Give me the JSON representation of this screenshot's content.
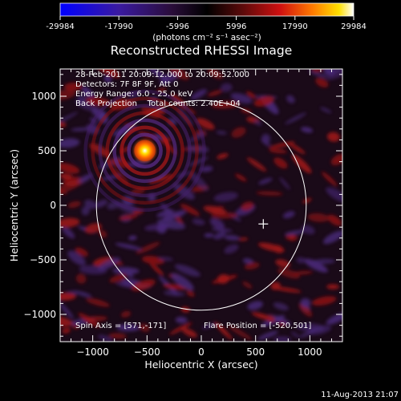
{
  "colorbar": {
    "ticks": [
      "-29984",
      "-17990",
      "-5996",
      "5996",
      "17990",
      "29984"
    ],
    "tick_values": [
      -29984,
      -17990,
      -5996,
      5996,
      17990,
      29984
    ],
    "units": "(photons cm⁻² s⁻¹ asec⁻²)",
    "colors": [
      "#0000ff",
      "#3a1aa0",
      "#2a0d3a",
      "#000000",
      "#5a0a0a",
      "#d01010",
      "#ff7a00",
      "#ffe000",
      "#ffffff"
    ]
  },
  "plot": {
    "title": "Reconstructed RHESSI Image",
    "xlabel": "Heliocentric X (arcsec)",
    "ylabel": "Heliocentric Y (arcsec)",
    "xlim": [
      -1300,
      1300
    ],
    "ylim": [
      -1250,
      1250
    ],
    "xticks": [
      -1000,
      -500,
      0,
      500,
      1000
    ],
    "yticks": [
      -1000,
      -500,
      0,
      500,
      1000
    ],
    "xtick_labels": [
      "−1000",
      "−500",
      "0",
      "500",
      "1000"
    ],
    "ytick_labels": [
      "1000",
      "500",
      "0",
      "−500",
      "−1000"
    ],
    "annotations": [
      "28-Feb-2011 20:09:12.000 to 20:09:52.000",
      "Detectors: 7F 8F 9F, Att 0",
      "Energy Range: 6.0 - 25.0 keV",
      "Back Projection    Total counts: 2.40E+04"
    ],
    "spin_axis": "Spin Axis = [571,-171]",
    "flare_position": "Flare Position = [-520,501]",
    "solar_limb_radius": 966,
    "spin_axis_xy": [
      571,
      -171
    ],
    "flare_xy": [
      -520,
      501
    ]
  },
  "footer": {
    "timestamp": "11-Aug-2013 21:07"
  }
}
